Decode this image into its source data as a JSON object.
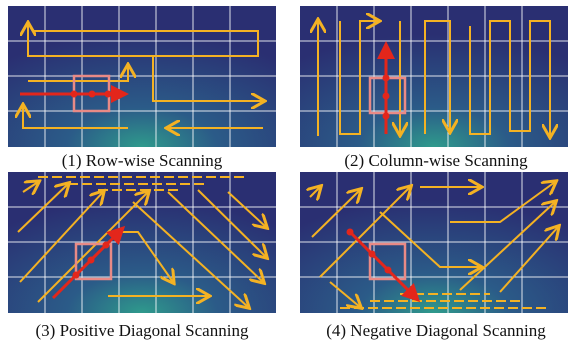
{
  "panels": [
    {
      "caption": "(1) Row-wise Scanning"
    },
    {
      "caption": "(2) Column-wise Scanning"
    },
    {
      "caption": "(3) Positive Diagonal Scanning"
    },
    {
      "caption": "(4) Negative Diagonal Scanning"
    }
  ]
}
